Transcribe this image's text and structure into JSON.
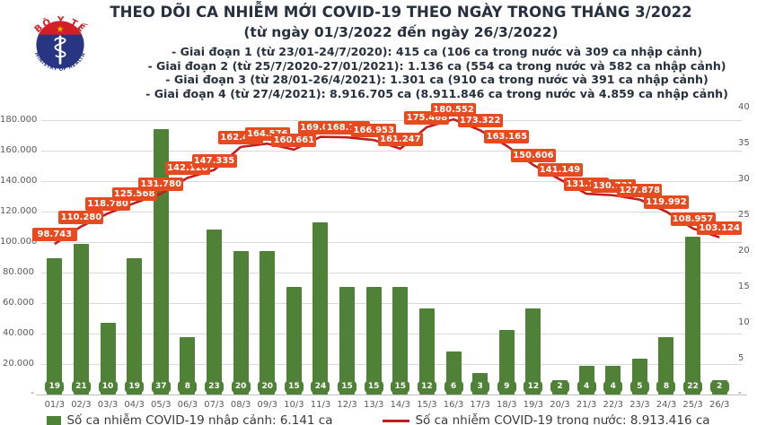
{
  "header": {
    "title": "THEO DÕI CA NHIỄM MỚI COVID-19 THEO NGÀY TRONG THÁNG 3/2022",
    "subtitle": "(từ ngày 01/3/2022 đến ngày 26/3/2022)",
    "bullets": [
      "- Giai đoạn 1 (từ 23/01-24/7/2020): 415 ca (106 ca trong nước và 309 ca nhập cảnh)",
      "- Giai đoạn 2 (từ 25/7/2020-27/01/2021): 1.136 ca (554 ca trong nước và 582 ca nhập cảnh)",
      "- Giai đoạn 3 (từ 28/01-26/4/2021): 1.301 ca (910 ca trong nước và 391 ca nhập cảnh)",
      "- Giai đoạn 4 (từ 27/4/2021): 8.916.705 ca (8.911.846 ca trong nước và 4.859 ca nhập cảnh)"
    ]
  },
  "logo": {
    "top_text": "BỘ Y TẾ",
    "bottom_text": "MINISTRY OF HEALTH",
    "star": "★"
  },
  "chart_data": {
    "type": "combo",
    "title": "THEO DÕI CA NHIỄM MỚI COVID-19 THEO NGÀY TRONG THÁNG 3/2022",
    "categories": [
      "01/3",
      "02/3",
      "03/3",
      "04/3",
      "05/3",
      "06/3",
      "07/3",
      "08/3",
      "09/3",
      "10/3",
      "11/3",
      "12/3",
      "13/3",
      "14/3",
      "15/3",
      "16/3",
      "17/3",
      "18/3",
      "19/3",
      "20/3",
      "21/3",
      "22/3",
      "23/3",
      "24/3",
      "25/3",
      "26/3"
    ],
    "series": [
      {
        "name": "Số ca nhiễm COVID-19 nhập cảnh",
        "type": "bar",
        "axis": "right",
        "color": "#4f8136",
        "values": [
          19,
          21,
          10,
          19,
          37,
          8,
          23,
          20,
          20,
          15,
          24,
          15,
          15,
          15,
          12,
          6,
          3,
          9,
          12,
          2,
          4,
          4,
          5,
          8,
          22,
          2
        ]
      },
      {
        "name": "Số ca nhiễm COVID-19 trong nước",
        "type": "line",
        "axis": "left",
        "color": "#bf1e1e",
        "label_bg": "#e8491f",
        "values": [
          98743,
          110280,
          118780,
          125568,
          131780,
          142128,
          147335,
          162415,
          164576,
          160661,
          169090,
          168704,
          166953,
          161247,
          175468,
          180552,
          173322,
          163165,
          150606,
          141149,
          131709,
          130731,
          127878,
          119992,
          108957,
          103124
        ],
        "point_labels": [
          "98.743",
          "110.280",
          "118.780",
          "125.568",
          "131.780",
          "142.128",
          "147.335",
          "162.415",
          "164.576",
          "160.661",
          "169.090",
          "168.704",
          "166.953",
          "161.247",
          "175.468",
          "180.552",
          "173.322",
          "163.165",
          "150.606",
          "141.149",
          "131.709",
          "130.731",
          "127.878",
          "119.992",
          "108.957",
          "103.124"
        ]
      }
    ],
    "left_axis": {
      "tick_values": [
        180000,
        160000,
        140000,
        120000,
        100000,
        80000,
        60000,
        40000,
        20000
      ],
      "tick_labels": [
        "180.000",
        "160.000",
        "140.000",
        "120.000",
        "100.000",
        "80.000",
        "60.000",
        "40.000",
        "20.000"
      ],
      "zero_label": "-",
      "range": [
        0,
        180000
      ]
    },
    "right_axis": {
      "tick_values": [
        40,
        35,
        30,
        25,
        20,
        15,
        10,
        5
      ],
      "max": 40,
      "zero_label": "-",
      "range": [
        0,
        40
      ]
    },
    "grid": true,
    "legend_position": "bottom"
  },
  "legend": {
    "bars": "Số ca nhiễm COVID-19 nhập cảnh: 6.141 ca",
    "line": "Số ca nhiễm COVID-19 trong nước: 8.913.416 ca"
  },
  "colors": {
    "bar_green": "#4f8136",
    "line_red": "#bf1e1e",
    "label_orange": "#e8491f",
    "grid_gray": "#d9d9d9",
    "axis_text": "#595959",
    "heading": "#26303f",
    "logo_red": "#d21f26",
    "logo_blue": "#283583",
    "logo_star_yellow": "#f8c300"
  }
}
